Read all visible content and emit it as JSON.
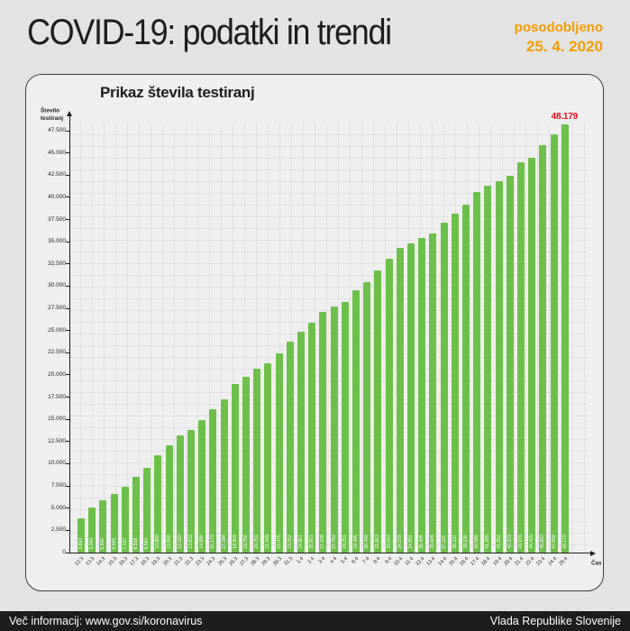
{
  "header": {
    "title": "COVID-19: podatki in trendi",
    "updated_label": "posodobljeno",
    "updated_date": "25. 4. 2020",
    "accent_color": "#f59c00"
  },
  "card": {
    "title": "Prikaz števila testiranj"
  },
  "chart_data": {
    "type": "bar",
    "title": "Prikaz števila testiranj",
    "ylabel": "Število testiranj",
    "y_axis_label_lines": [
      "Število",
      "testiranj"
    ],
    "xlabel": "Čas",
    "ylim": [
      0,
      48500
    ],
    "grid": true,
    "bar_color": "#6cc04a",
    "y_ticks": [
      0,
      2500,
      5000,
      7500,
      10000,
      12500,
      15000,
      17500,
      20000,
      22500,
      25000,
      27500,
      30000,
      32500,
      35000,
      37500,
      40000,
      42500,
      45000,
      47500
    ],
    "y_tick_labels": [
      "0",
      "2.500",
      "5.000",
      "7.500",
      "10.000",
      "12.500",
      "15.000",
      "17.500",
      "20.000",
      "22.500",
      "25.000",
      "27.500",
      "30.000",
      "32.500",
      "35.000",
      "37.500",
      "40.000",
      "42.500",
      "45.000",
      "47.500"
    ],
    "categories": [
      "12.3",
      "13.3",
      "14.3",
      "15.3",
      "16.3",
      "17.3",
      "18.3",
      "19.3",
      "20.3",
      "21.3",
      "22.3",
      "23.3",
      "24.3",
      "25.3",
      "26.3",
      "27.3",
      "28.3",
      "29.3",
      "30.3",
      "31.3",
      "1.4",
      "2.4",
      "3.4",
      "4.4",
      "5.4",
      "6.4",
      "7.4",
      "8.4",
      "9.4",
      "10.4",
      "11.4",
      "12.4",
      "13.4",
      "14.4",
      "15.4",
      "16.4",
      "17.4",
      "18.4",
      "19.4",
      "20.4",
      "21.4",
      "22.4",
      "23.4",
      "24.4",
      "25.4"
    ],
    "values": [
      3863,
      5060,
      5936,
      6566,
      7437,
      8558,
      9584,
      10959,
      12060,
      13182,
      13833,
      14890,
      16173,
      17284,
      18969,
      19756,
      20751,
      21349,
      22476,
      23762,
      24857,
      25921,
      27109,
      27754,
      28251,
      29485,
      30449,
      31813,
      33047,
      34279,
      34851,
      35405,
      35946,
      37116,
      38137,
      39130,
      40580,
      41265,
      41852,
      42379,
      43979,
      44425,
      45903,
      47058,
      48179
    ],
    "value_labels": [
      "3.863",
      "5.060",
      "5.936",
      "6.566",
      "7.437",
      "8.558",
      "9.584",
      "10.959",
      "12.060",
      "13.182",
      "13.833",
      "14.890",
      "16.173",
      "17.284",
      "18.969",
      "19.756",
      "20.751",
      "21.349",
      "22.476",
      "23.762",
      "24.857",
      "25.921",
      "27.109",
      "27.754",
      "28.251",
      "29.485",
      "30.449",
      "31.813",
      "33.047",
      "34.279",
      "34.851",
      "35.405",
      "35.946",
      "37.116",
      "38.137",
      "39.130",
      "40.580",
      "41.265",
      "41.852",
      "42.379",
      "43.979",
      "44.425",
      "45.903",
      "47.058",
      "48.179"
    ],
    "annotation": {
      "text": "48.179",
      "color": "#e30613"
    }
  },
  "footer": {
    "left": "Več informacij: www.gov.si/koronavirus",
    "right": "Vlada Republike Slovenije"
  }
}
